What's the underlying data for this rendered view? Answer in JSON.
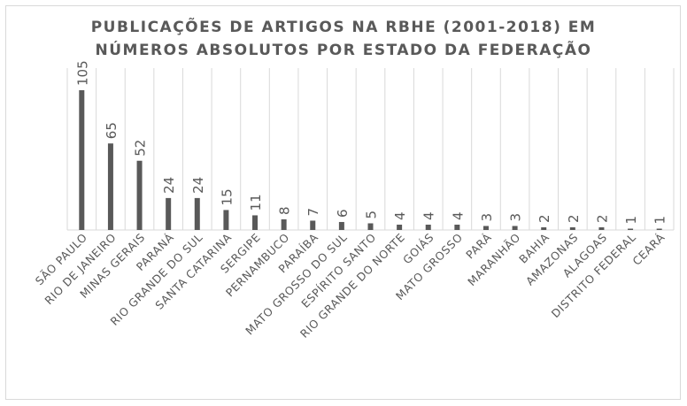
{
  "chart_data": {
    "type": "bar",
    "title_line1": "PUBLICAÇÕES DE ARTIGOS NA RBHE (2001-2018) EM",
    "title_line2": "NÚMEROS ABSOLUTOS POR ESTADO DA FEDERAÇÃO",
    "categories": [
      "SÃO PAULO",
      "RIO DE JANEIRO",
      "MINAS GERAIS",
      "PARANÁ",
      "RIO GRANDE DO SUL",
      "SANTA CATARINA",
      "SERGIPE",
      "PERNAMBUCO",
      "PARAÍBA",
      "MATO GROSSO DO SUL",
      "ESPÍRITO SANTO",
      "RIO GRANDE DO NORTE",
      "GOIÁS",
      "MATO GROSSO",
      "PARÁ",
      "MARANHÃO",
      "BAHIA",
      "AMAZONAS",
      "ALAGOAS",
      "DISTRITO FEDERAL",
      "CEARÁ"
    ],
    "values": [
      105,
      65,
      52,
      24,
      24,
      15,
      11,
      8,
      7,
      6,
      5,
      4,
      4,
      4,
      3,
      3,
      2,
      2,
      2,
      1,
      1
    ],
    "ylim": [
      0,
      120
    ],
    "grid": "vertical",
    "bar_color": "#595959",
    "grid_color": "#d9d9d9",
    "text_color": "#595959"
  }
}
